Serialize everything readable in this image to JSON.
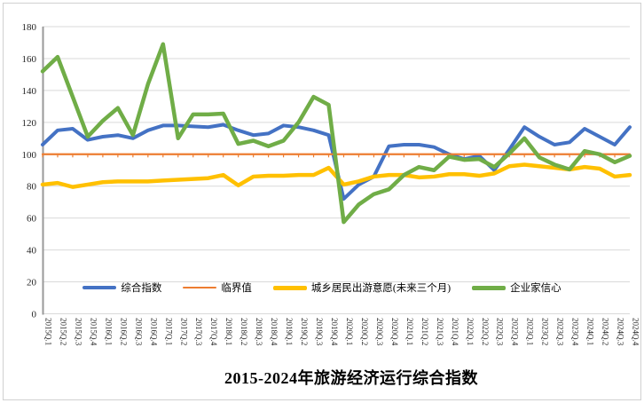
{
  "frame": {
    "background": "#FFFFFF",
    "border_color": "#D0D0D0"
  },
  "chart_data": {
    "type": "line",
    "title": "2015-2024年旅游经济运行综合指数",
    "xlabel": "",
    "ylabel": "",
    "ylim": [
      0,
      180
    ],
    "yticks": [
      0,
      20,
      40,
      60,
      80,
      100,
      120,
      140,
      160,
      180
    ],
    "grid": true,
    "legend_position": "bottom",
    "x_axis_cross": 100,
    "axis_color": "#999999",
    "gridline_color": "#D9D9D9",
    "tick_color": "#ED7D31",
    "label_color": "#262626",
    "categories": [
      "2015Q.1",
      "2015Q.2",
      "2015Q.3",
      "2015Q.4",
      "2016Q.1",
      "2016Q.2",
      "2016Q.3",
      "2016Q.4",
      "2017Q.1",
      "2017Q.2",
      "2017Q.3",
      "2017Q.4",
      "2018Q.1",
      "2018Q.2",
      "2018Q.3",
      "2018Q.4",
      "2019Q.1",
      "2019Q.2",
      "2019Q.3",
      "2019Q.4",
      "2020Q.1",
      "2020Q.2",
      "2020Q.3",
      "2020Q.4",
      "2021Q.1",
      "2021Q.2",
      "2021Q.3",
      "2021Q.4",
      "2022Q.1",
      "2022Q.2",
      "2022Q.3",
      "2022Q.4",
      "2023Q.1",
      "2023Q.2",
      "2023Q.3",
      "2023Q.4",
      "2024Q.1",
      "2024Q.2",
      "2024Q.3",
      "2024Q.4"
    ],
    "series": [
      {
        "key": "composite-index",
        "name": "综合指数",
        "color": "#4472C4",
        "width": 4,
        "values": [
          106,
          115,
          116,
          109,
          111,
          112,
          110,
          115,
          118,
          118,
          117.5,
          117,
          118.5,
          115,
          112,
          113,
          118,
          117,
          115,
          112,
          72,
          81,
          86,
          105,
          106,
          106,
          104.5,
          100,
          97,
          99,
          90,
          103,
          117,
          111,
          106,
          107.5,
          116,
          111,
          106,
          117
        ]
      },
      {
        "key": "threshold",
        "name": "临界值",
        "color": "#ED7D31",
        "width": 2.2,
        "values": [
          100,
          100,
          100,
          100,
          100,
          100,
          100,
          100,
          100,
          100,
          100,
          100,
          100,
          100,
          100,
          100,
          100,
          100,
          100,
          100,
          100,
          100,
          100,
          100,
          100,
          100,
          100,
          100,
          100,
          100,
          100,
          100,
          100,
          100,
          100,
          100,
          100,
          100,
          100,
          100
        ]
      },
      {
        "key": "travel-intention",
        "name": "城乡居民出游意愿(未来三个月)",
        "color": "#FFC000",
        "width": 4.5,
        "values": [
          81,
          82,
          79.5,
          81,
          82.5,
          83,
          83,
          83,
          83.5,
          84,
          84.5,
          85,
          87,
          80.5,
          86,
          86.5,
          86.5,
          87,
          87,
          91.5,
          81,
          83,
          86,
          87,
          87,
          85.5,
          86,
          87.5,
          87.5,
          86.5,
          88,
          92.5,
          93.5,
          92.5,
          91.5,
          90.5,
          92,
          91,
          86,
          87
        ]
      },
      {
        "key": "entrepreneur-confidence",
        "name": "企业家信心",
        "color": "#70AD47",
        "width": 4.5,
        "values": [
          152,
          161,
          136,
          111,
          121,
          129,
          112,
          144,
          169,
          110,
          125,
          125,
          125.5,
          106.5,
          108.5,
          105,
          108.5,
          120,
          136,
          131,
          57.5,
          68.5,
          75,
          78,
          87,
          92,
          90,
          98.5,
          96.5,
          97,
          92,
          100.5,
          110,
          98,
          93.5,
          90.5,
          102,
          100,
          95,
          99
        ]
      }
    ]
  }
}
